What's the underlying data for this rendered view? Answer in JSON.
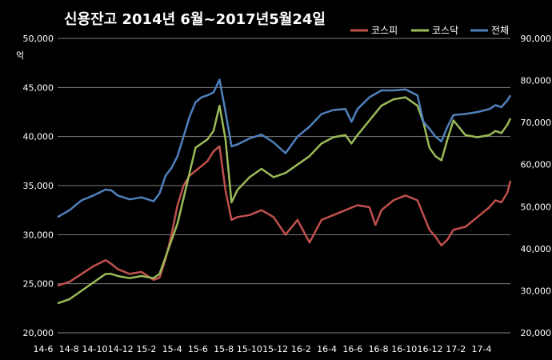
{
  "chart_data": {
    "type": "line",
    "title": "신용잔고 2014년 6월~2017년5월24일",
    "left_axis": {
      "unit": "억",
      "range": [
        20000,
        50000
      ],
      "ticks": [
        "20,000",
        "25,000",
        "30,000",
        "35,000",
        "40,000",
        "45,000",
        "50,000"
      ]
    },
    "right_axis": {
      "range": [
        20000,
        90000
      ],
      "ticks": [
        "20,000",
        "30,000",
        "40,000",
        "50,000",
        "60,000",
        "70,000",
        "80,000",
        "90,000"
      ]
    },
    "x_ticks": [
      "14-6",
      "14-8",
      "14-10",
      "14-12",
      "15-2",
      "15-4",
      "15-6",
      "15-8",
      "15-10",
      "15-12",
      "16-2",
      "16-4",
      "16-6",
      "16-8",
      "16-10",
      "16-12",
      "17-2",
      "17-4"
    ],
    "grid": true,
    "legend_position": "top-right",
    "series": [
      {
        "name": "코스피",
        "axis": "left",
        "color": "#c0504d",
        "points": [
          [
            0,
            24800
          ],
          [
            2,
            25200
          ],
          [
            4,
            26000
          ],
          [
            6,
            26800
          ],
          [
            8,
            27400
          ],
          [
            9,
            27000
          ],
          [
            10,
            26500
          ],
          [
            12,
            26000
          ],
          [
            14,
            26200
          ],
          [
            16,
            25400
          ],
          [
            17,
            25600
          ],
          [
            18,
            27500
          ],
          [
            19,
            30000
          ],
          [
            20,
            33000
          ],
          [
            21,
            35000
          ],
          [
            22,
            36000
          ],
          [
            23,
            36500
          ],
          [
            24,
            37000
          ],
          [
            25,
            37500
          ],
          [
            26,
            38500
          ],
          [
            27,
            39000
          ],
          [
            28,
            34500
          ],
          [
            29,
            31500
          ],
          [
            30,
            31800
          ],
          [
            32,
            32000
          ],
          [
            34,
            32500
          ],
          [
            36,
            31800
          ],
          [
            38,
            30000
          ],
          [
            40,
            31500
          ],
          [
            42,
            29200
          ],
          [
            44,
            31500
          ],
          [
            46,
            32000
          ],
          [
            48,
            32500
          ],
          [
            50,
            33000
          ],
          [
            52,
            32800
          ],
          [
            53,
            31000
          ],
          [
            54,
            32500
          ],
          [
            56,
            33500
          ],
          [
            58,
            34000
          ],
          [
            60,
            33500
          ],
          [
            61,
            32000
          ],
          [
            62,
            30500
          ],
          [
            63,
            29800
          ],
          [
            64,
            28900
          ],
          [
            65,
            29500
          ],
          [
            66,
            30500
          ],
          [
            68,
            30800
          ],
          [
            70,
            31800
          ],
          [
            72,
            32800
          ],
          [
            73,
            33500
          ],
          [
            74,
            33300
          ],
          [
            75,
            34300
          ],
          [
            75.5,
            35500
          ]
        ]
      },
      {
        "name": "코스닥",
        "axis": "right",
        "color": "#9bbb59",
        "points": [
          [
            0,
            27000
          ],
          [
            2,
            28000
          ],
          [
            4,
            30000
          ],
          [
            6,
            32000
          ],
          [
            8,
            34000
          ],
          [
            9,
            34000
          ],
          [
            10,
            33500
          ],
          [
            12,
            33000
          ],
          [
            14,
            33500
          ],
          [
            16,
            33000
          ],
          [
            17,
            34000
          ],
          [
            18,
            38000
          ],
          [
            19,
            42000
          ],
          [
            20,
            46000
          ],
          [
            21,
            52000
          ],
          [
            22,
            58000
          ],
          [
            23,
            64000
          ],
          [
            24,
            65000
          ],
          [
            25,
            66000
          ],
          [
            26,
            68000
          ],
          [
            27,
            74000
          ],
          [
            28,
            66000
          ],
          [
            29,
            51000
          ],
          [
            30,
            54000
          ],
          [
            32,
            57000
          ],
          [
            34,
            59000
          ],
          [
            36,
            57000
          ],
          [
            38,
            58000
          ],
          [
            40,
            60000
          ],
          [
            42,
            62000
          ],
          [
            44,
            65000
          ],
          [
            46,
            66500
          ],
          [
            48,
            67000
          ],
          [
            49,
            65000
          ],
          [
            50,
            67000
          ],
          [
            52,
            70500
          ],
          [
            54,
            74000
          ],
          [
            56,
            75500
          ],
          [
            58,
            76000
          ],
          [
            60,
            74000
          ],
          [
            61,
            70000
          ],
          [
            62,
            64000
          ],
          [
            63,
            62000
          ],
          [
            64,
            61000
          ],
          [
            65,
            66000
          ],
          [
            66,
            70500
          ],
          [
            68,
            67000
          ],
          [
            70,
            66500
          ],
          [
            72,
            67000
          ],
          [
            73,
            68000
          ],
          [
            74,
            67500
          ],
          [
            75,
            69500
          ],
          [
            75.5,
            71000
          ]
        ]
      },
      {
        "name": "전체",
        "axis": "left",
        "color": "#4f81bd",
        "points": [
          [
            0,
            31800
          ],
          [
            2,
            32500
          ],
          [
            4,
            33500
          ],
          [
            6,
            34000
          ],
          [
            8,
            34600
          ],
          [
            9,
            34500
          ],
          [
            10,
            34000
          ],
          [
            12,
            33600
          ],
          [
            14,
            33800
          ],
          [
            16,
            33400
          ],
          [
            17,
            34200
          ],
          [
            18,
            36000
          ],
          [
            19,
            36800
          ],
          [
            20,
            38000
          ],
          [
            21,
            40000
          ],
          [
            22,
            42000
          ],
          [
            23,
            43500
          ],
          [
            24,
            44000
          ],
          [
            25,
            44200
          ],
          [
            26,
            44500
          ],
          [
            27,
            45800
          ],
          [
            28,
            42500
          ],
          [
            29,
            39000
          ],
          [
            30,
            39200
          ],
          [
            32,
            39800
          ],
          [
            34,
            40200
          ],
          [
            36,
            39400
          ],
          [
            38,
            38300
          ],
          [
            40,
            40000
          ],
          [
            42,
            41000
          ],
          [
            44,
            42300
          ],
          [
            46,
            42700
          ],
          [
            48,
            42800
          ],
          [
            49,
            41500
          ],
          [
            50,
            42800
          ],
          [
            52,
            44000
          ],
          [
            54,
            44700
          ],
          [
            56,
            44700
          ],
          [
            58,
            44800
          ],
          [
            60,
            44200
          ],
          [
            61,
            41500
          ],
          [
            62,
            40800
          ],
          [
            63,
            40000
          ],
          [
            64,
            39500
          ],
          [
            65,
            41000
          ],
          [
            66,
            42200
          ],
          [
            68,
            42300
          ],
          [
            70,
            42500
          ],
          [
            72,
            42800
          ],
          [
            73,
            43200
          ],
          [
            74,
            43000
          ],
          [
            75,
            43700
          ],
          [
            75.5,
            44200
          ]
        ]
      }
    ]
  }
}
